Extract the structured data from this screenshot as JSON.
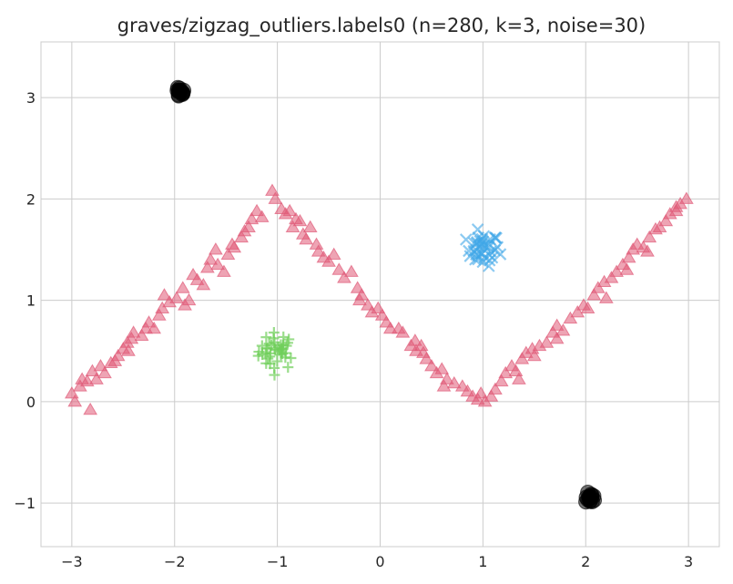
{
  "chart_data": {
    "type": "scatter",
    "title": "graves/zigzag_outliers.labels0 (n=280, k=3, noise=30)",
    "xlabel": "",
    "ylabel": "",
    "xlim": [
      -3.3,
      3.3
    ],
    "ylim": [
      -1.43,
      3.55
    ],
    "x_ticks": [
      -3,
      -2,
      -1,
      0,
      1,
      2,
      3
    ],
    "y_ticks": [
      -1,
      0,
      1,
      2,
      3
    ],
    "x_tick_labels": [
      "−3",
      "−2",
      "−1",
      "0",
      "1",
      "2",
      "3"
    ],
    "y_tick_labels": [
      "−1",
      "0",
      "1",
      "2",
      "3"
    ],
    "grid": true,
    "legend": "none",
    "series": [
      {
        "marker": "triangle",
        "color": "#e05a77",
        "zigzag_vertices": [
          [
            -3.0,
            0.0
          ],
          [
            -1.0,
            2.0
          ],
          [
            1.0,
            0.0
          ],
          [
            3.0,
            2.0
          ]
        ],
        "sample_points": [
          [
            -3.0,
            0.08
          ],
          [
            -2.97,
            0.0
          ],
          [
            -2.92,
            0.15
          ],
          [
            -2.9,
            0.22
          ],
          [
            -2.85,
            0.2
          ],
          [
            -2.82,
            -0.08
          ],
          [
            -2.8,
            0.3
          ],
          [
            -2.76,
            0.22
          ],
          [
            -2.72,
            0.35
          ],
          [
            -2.62,
            0.38
          ],
          [
            -2.58,
            0.4
          ],
          [
            -2.55,
            0.45
          ],
          [
            -2.5,
            0.52
          ],
          [
            -2.46,
            0.58
          ],
          [
            -2.42,
            0.62
          ],
          [
            -2.4,
            0.68
          ],
          [
            -2.32,
            0.65
          ],
          [
            -2.28,
            0.72
          ],
          [
            -2.25,
            0.78
          ],
          [
            -2.2,
            0.72
          ],
          [
            -2.15,
            0.85
          ],
          [
            -2.12,
            0.92
          ],
          [
            -2.1,
            1.05
          ],
          [
            -2.05,
            0.98
          ],
          [
            -1.98,
            1.02
          ],
          [
            -1.92,
            1.12
          ],
          [
            -1.86,
            1.0
          ],
          [
            -1.82,
            1.25
          ],
          [
            -1.78,
            1.2
          ],
          [
            -1.72,
            1.15
          ],
          [
            -1.68,
            1.32
          ],
          [
            -1.65,
            1.4
          ],
          [
            -1.6,
            1.5
          ],
          [
            -1.52,
            1.28
          ],
          [
            -1.48,
            1.45
          ],
          [
            -1.44,
            1.55
          ],
          [
            -1.42,
            1.52
          ],
          [
            -1.32,
            1.68
          ],
          [
            -1.28,
            1.72
          ],
          [
            -1.25,
            1.8
          ],
          [
            -1.2,
            1.88
          ],
          [
            -1.15,
            1.82
          ],
          [
            -1.05,
            2.08
          ],
          [
            -1.02,
            2.0
          ],
          [
            -0.96,
            1.9
          ],
          [
            -0.92,
            1.85
          ],
          [
            -0.88,
            1.88
          ],
          [
            -0.85,
            1.72
          ],
          [
            -0.78,
            1.78
          ],
          [
            -0.75,
            1.65
          ],
          [
            -0.72,
            1.6
          ],
          [
            -0.68,
            1.72
          ],
          [
            -0.62,
            1.55
          ],
          [
            -0.55,
            1.42
          ],
          [
            -0.5,
            1.38
          ],
          [
            -0.45,
            1.45
          ],
          [
            -0.4,
            1.3
          ],
          [
            -0.35,
            1.22
          ],
          [
            -0.28,
            1.28
          ],
          [
            -0.22,
            1.12
          ],
          [
            -0.18,
            1.05
          ],
          [
            -0.12,
            0.95
          ],
          [
            -0.08,
            0.88
          ],
          [
            -0.02,
            0.92
          ],
          [
            0.02,
            0.85
          ],
          [
            0.06,
            0.78
          ],
          [
            0.1,
            0.72
          ],
          [
            0.18,
            0.72
          ],
          [
            0.22,
            0.68
          ],
          [
            0.3,
            0.55
          ],
          [
            0.34,
            0.6
          ],
          [
            0.4,
            0.55
          ],
          [
            0.45,
            0.42
          ],
          [
            0.5,
            0.35
          ],
          [
            0.55,
            0.28
          ],
          [
            0.6,
            0.32
          ],
          [
            0.65,
            0.22
          ],
          [
            0.72,
            0.18
          ],
          [
            0.8,
            0.15
          ],
          [
            0.85,
            0.1
          ],
          [
            0.9,
            0.05
          ],
          [
            0.95,
            0.02
          ],
          [
            0.98,
            0.08
          ],
          [
            1.02,
            0.0
          ],
          [
            1.08,
            0.05
          ],
          [
            1.12,
            0.12
          ],
          [
            1.18,
            0.2
          ],
          [
            1.22,
            0.28
          ],
          [
            1.28,
            0.35
          ],
          [
            1.32,
            0.3
          ],
          [
            1.38,
            0.42
          ],
          [
            1.42,
            0.48
          ],
          [
            1.48,
            0.52
          ],
          [
            1.55,
            0.55
          ],
          [
            1.62,
            0.58
          ],
          [
            1.68,
            0.68
          ],
          [
            1.72,
            0.75
          ],
          [
            1.78,
            0.7
          ],
          [
            1.85,
            0.82
          ],
          [
            1.92,
            0.88
          ],
          [
            1.98,
            0.95
          ],
          [
            2.02,
            0.92
          ],
          [
            2.08,
            1.05
          ],
          [
            2.12,
            1.12
          ],
          [
            2.18,
            1.18
          ],
          [
            2.25,
            1.22
          ],
          [
            2.3,
            1.28
          ],
          [
            2.36,
            1.35
          ],
          [
            2.42,
            1.42
          ],
          [
            2.46,
            1.5
          ],
          [
            2.5,
            1.55
          ],
          [
            2.56,
            1.52
          ],
          [
            2.62,
            1.62
          ],
          [
            2.68,
            1.7
          ],
          [
            2.72,
            1.72
          ],
          [
            2.78,
            1.78
          ],
          [
            2.82,
            1.85
          ],
          [
            2.88,
            1.92
          ],
          [
            2.92,
            1.95
          ],
          [
            2.98,
            2.0
          ],
          [
            2.88,
            1.88
          ],
          [
            2.6,
            1.48
          ],
          [
            2.2,
            1.02
          ],
          [
            1.72,
            0.62
          ],
          [
            1.35,
            0.22
          ],
          [
            0.62,
            0.15
          ],
          [
            0.35,
            0.5
          ],
          [
            -0.2,
            1.0
          ],
          [
            -0.6,
            1.48
          ],
          [
            -1.35,
            1.62
          ],
          [
            -1.9,
            0.95
          ],
          [
            -2.45,
            0.5
          ],
          [
            -2.68,
            0.28
          ],
          [
            -1.58,
            1.35
          ],
          [
            -0.82,
            1.8
          ],
          [
            0.42,
            0.48
          ],
          [
            1.5,
            0.45
          ],
          [
            2.4,
            1.3
          ]
        ]
      },
      {
        "marker": "plus",
        "color": "#6fcf5a",
        "center": [
          -1.0,
          0.5
        ],
        "spread": 0.09,
        "count": 40
      },
      {
        "marker": "cross",
        "color": "#3fa6e8",
        "center": [
          1.0,
          1.5
        ],
        "spread": 0.08,
        "count": 40
      },
      {
        "marker": "circle",
        "color": "#000000",
        "clusters": [
          {
            "center": [
              -1.95,
              3.05
            ],
            "spread": 0.025,
            "count": 15
          },
          {
            "center": [
              2.05,
              -0.95
            ],
            "spread": 0.025,
            "count": 15
          }
        ]
      }
    ]
  }
}
